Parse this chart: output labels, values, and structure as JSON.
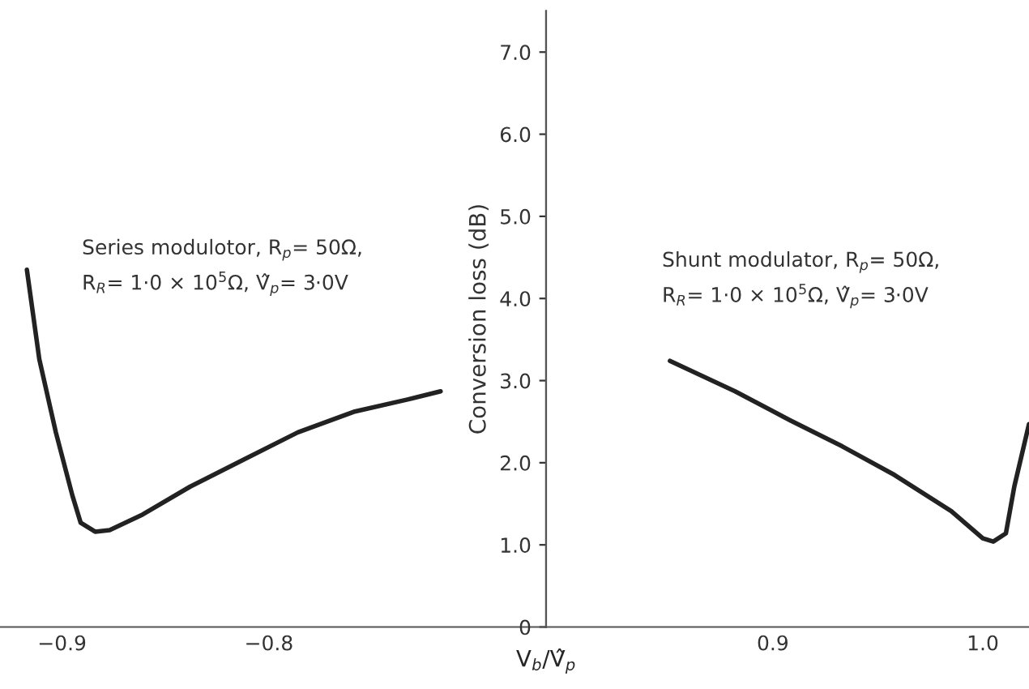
{
  "chart_data": [
    {
      "type": "line",
      "xlim": [
        -0.93,
        -0.666
      ],
      "xticks": [
        {
          "value": -0.9,
          "label": "−0.9"
        },
        {
          "value": -0.8,
          "label": "−0.8"
        }
      ],
      "ylim": [
        0,
        7.5
      ],
      "yticks": [
        0,
        1,
        2,
        3,
        4,
        5,
        6,
        7
      ],
      "tick_labels": "x",
      "grid": false,
      "marker": "none",
      "line_style": "solid",
      "annotations": [
        "Series modulotor, R$_{p}$= 50Ω,\nR$_{R}$= 1·0 × 10$^{5}$Ω, V̂$_{p}$= 3·0V"
      ],
      "series": [
        {
          "color": "#222222",
          "x": [
            -0.917,
            -0.911,
            -0.903,
            -0.895,
            -0.891,
            -0.884,
            -0.877,
            -0.861,
            -0.838,
            -0.812,
            -0.786,
            -0.759,
            -0.733,
            -0.717
          ],
          "values": [
            4.35,
            3.26,
            2.37,
            1.6,
            1.27,
            1.16,
            1.18,
            1.37,
            1.71,
            2.04,
            2.37,
            2.62,
            2.77,
            2.87
          ]
        }
      ]
    },
    {
      "type": "line",
      "xlim": [
        0.792,
        1.022
      ],
      "xticks": [
        {
          "value": 0.9,
          "label": "0.9"
        },
        {
          "value": 1,
          "label": "1.0"
        }
      ],
      "ylim": [
        0,
        7.5
      ],
      "yticks": [
        0,
        {
          "value": 1,
          "label": "1.0"
        },
        {
          "value": 2,
          "label": "2.0"
        },
        {
          "value": 3,
          "label": "3.0"
        },
        {
          "value": 4,
          "label": "4.0"
        },
        {
          "value": 5,
          "label": "5.0"
        },
        {
          "value": 6,
          "label": "6.0"
        },
        {
          "value": 7,
          "label": "7.0"
        }
      ],
      "xlabel": "V$_{b}$/V̂$_{p}$",
      "ylabel": "Conversion loss (dB)",
      "grid": false,
      "marker": "none",
      "line_style": "solid",
      "annotations": [
        "Shunt modulator, R$_{p}$= 50Ω,\nR$_{R}$= 1·0 × 10$^{5}$Ω, V̂$_{p}$= 3·0V"
      ],
      "series": [
        {
          "color": "#222222",
          "x": [
            0.851,
            0.882,
            0.908,
            0.933,
            0.958,
            0.985,
            1.0,
            1.005,
            1.011,
            1.015,
            1.022
          ],
          "values": [
            3.24,
            2.87,
            2.52,
            2.2,
            1.85,
            1.41,
            1.08,
            1.04,
            1.14,
            1.71,
            2.47
          ]
        }
      ]
    }
  ]
}
